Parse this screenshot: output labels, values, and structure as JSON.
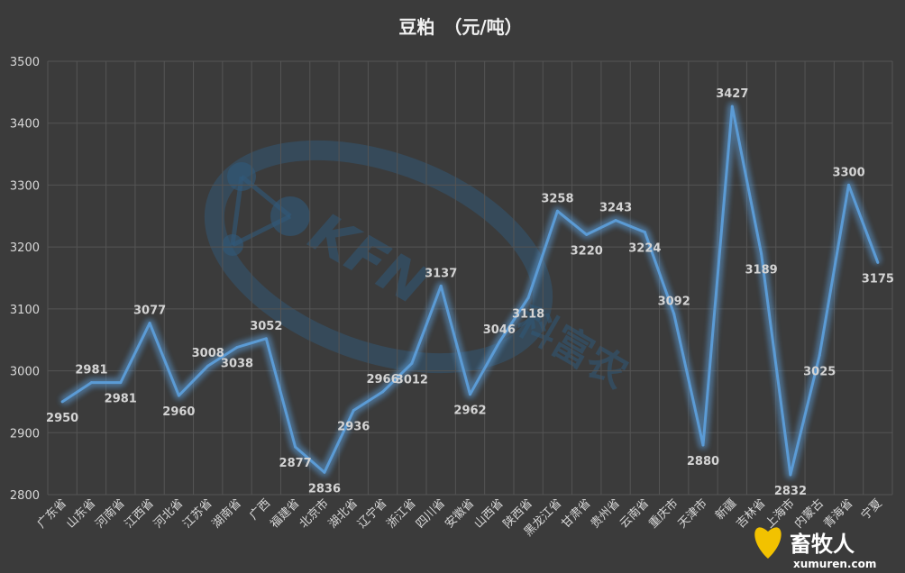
{
  "chart_data": {
    "type": "line",
    "title": "豆粕　（元/吨）",
    "categories": [
      "广东省",
      "山东省",
      "河南省",
      "江西省",
      "河北省",
      "江苏省",
      "湖南省",
      "广西",
      "福建省",
      "北京市",
      "湖北省",
      "辽宁省",
      "浙江省",
      "四川省",
      "安徽省",
      "山西省",
      "陕西省",
      "黑龙江省",
      "甘肃省",
      "贵州省",
      "云南省",
      "重庆市",
      "天津市",
      "新疆",
      "吉林省",
      "上海市",
      "内蒙古",
      "青海省",
      "宁夏"
    ],
    "series": [
      {
        "values": [
          2950,
          2981,
          2981,
          3077,
          2960,
          3008,
          3038,
          3052,
          2877,
          2836,
          2936,
          2966,
          3012,
          3137,
          2962,
          3046,
          3118,
          3258,
          3220,
          3243,
          3224,
          3092,
          2880,
          3427,
          3189,
          2832,
          3025,
          3300,
          3175
        ],
        "color": "#5b9bd5"
      }
    ],
    "ylim": [
      2800,
      3500
    ],
    "yticks": [
      2800,
      2900,
      3000,
      3100,
      3200,
      3300,
      3400,
      3500
    ],
    "grid": true,
    "legend": "none"
  },
  "watermark": {
    "brand_latin": "KFN",
    "brand_cn": "科富农"
  },
  "logo": {
    "name_cn": "畜牧人",
    "url_text": "xumuren.com"
  },
  "colors": {
    "background": "#3b3b3b",
    "line": "#5b9bd5",
    "grid": "#555555"
  }
}
